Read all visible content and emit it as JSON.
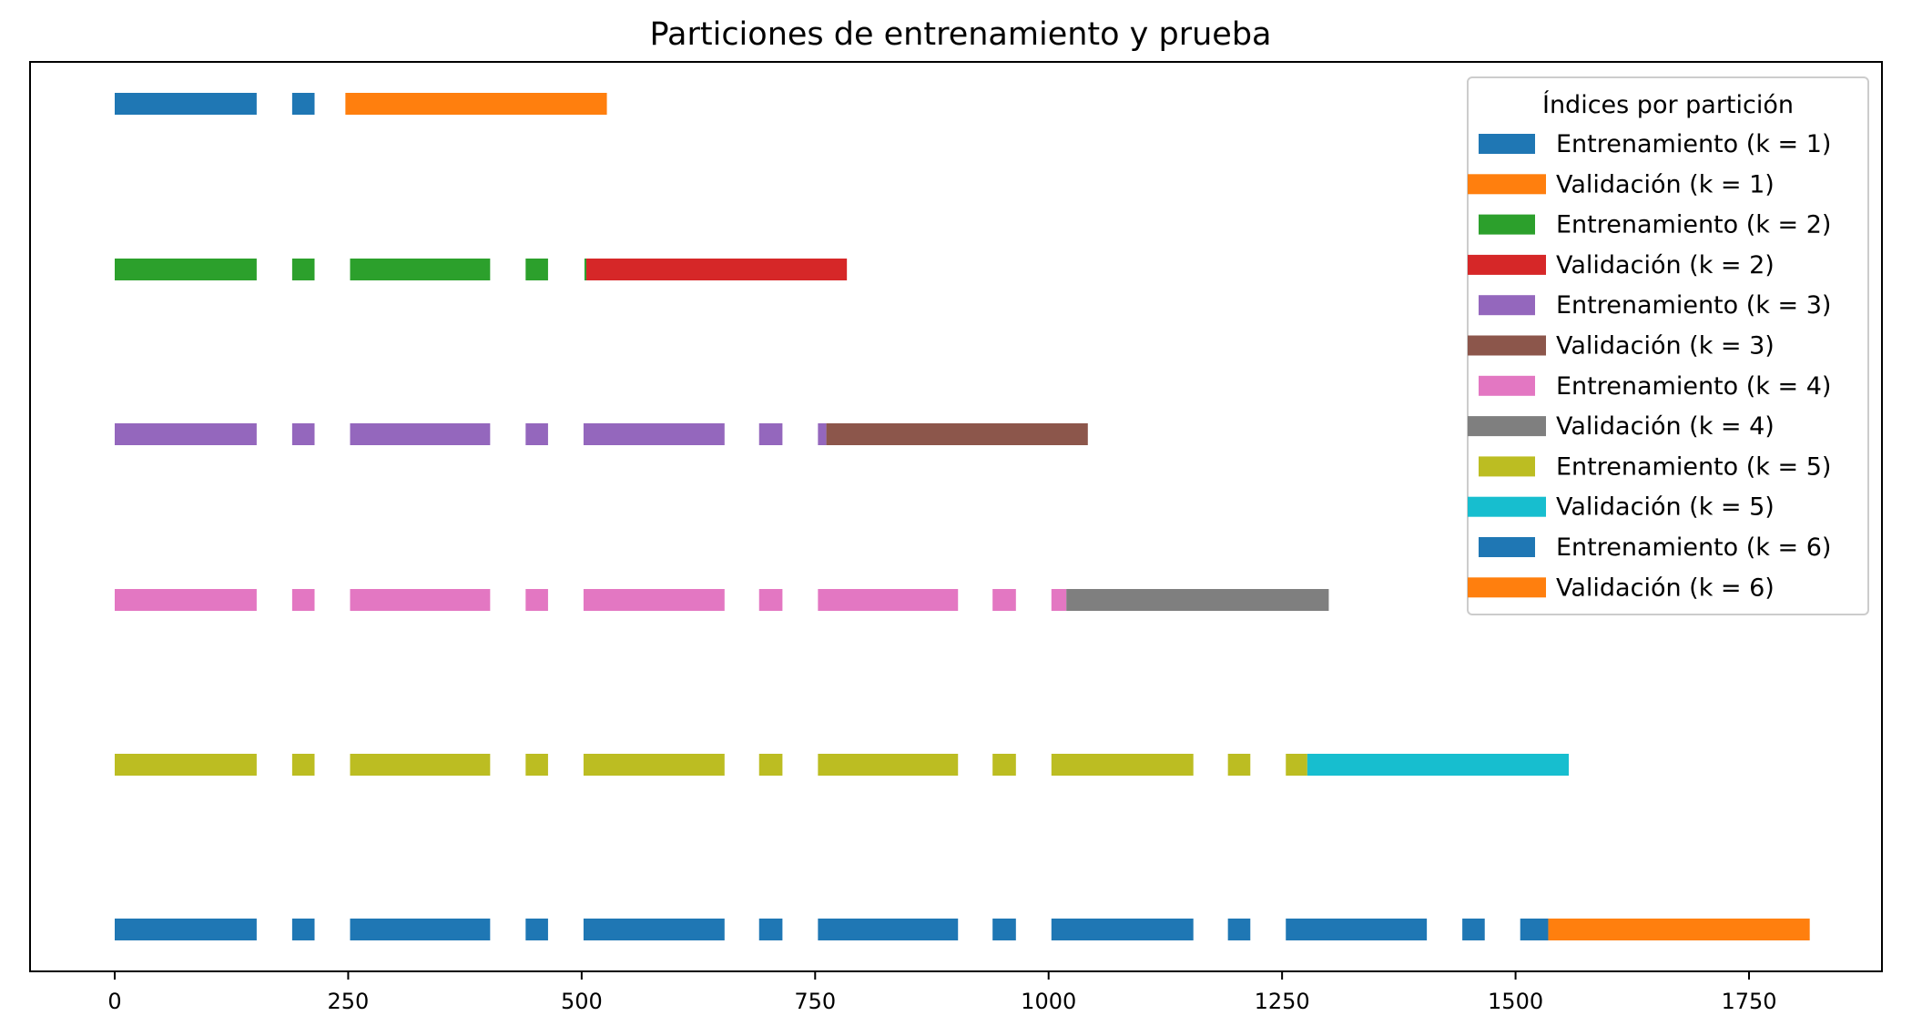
{
  "chart_data": {
    "type": "bar",
    "orientation": "horizontal-broken-bars",
    "title": "Particiones de entrenamiento y prueba",
    "xlabel": "",
    "ylabel": "",
    "xlim": [
      -90,
      1885
    ],
    "xticks": [
      0,
      250,
      500,
      750,
      1000,
      1250,
      1500,
      1750
    ],
    "yticks_visible": false,
    "grid": false,
    "legend": {
      "title": "Índices por partición",
      "placement": "top-right"
    },
    "colors": {
      "blue": "#1f77b4",
      "orange": "#ff7f0e",
      "green": "#2ca02c",
      "red": "#d62728",
      "purple": "#9467bd",
      "brown": "#8c564b",
      "pink": "#e377c2",
      "gray": "#7f7f7f",
      "olive": "#bcbd22",
      "cyan": "#17becf"
    },
    "series": [
      {
        "name": "Entrenamiento (k = 1)",
        "row": 1,
        "role": "train",
        "color": "#1f77b4",
        "segments": [
          [
            0,
            152
          ],
          [
            190,
            214
          ]
        ]
      },
      {
        "name": "Validación (k = 1)",
        "row": 1,
        "role": "val",
        "color": "#ff7f0e",
        "segments": [
          [
            247,
            527
          ]
        ]
      },
      {
        "name": "Entrenamiento (k = 2)",
        "row": 2,
        "role": "train",
        "color": "#2ca02c",
        "segments": [
          [
            0,
            152
          ],
          [
            190,
            214
          ],
          [
            252,
            402
          ],
          [
            440,
            464
          ],
          [
            503,
            505
          ]
        ]
      },
      {
        "name": "Validación (k = 2)",
        "row": 2,
        "role": "val",
        "color": "#d62728",
        "segments": [
          [
            505,
            784
          ]
        ]
      },
      {
        "name": "Entrenamiento (k = 3)",
        "row": 3,
        "role": "train",
        "color": "#9467bd",
        "segments": [
          [
            0,
            152
          ],
          [
            190,
            214
          ],
          [
            252,
            402
          ],
          [
            440,
            464
          ],
          [
            502,
            653
          ],
          [
            690,
            715
          ],
          [
            753,
            762
          ]
        ]
      },
      {
        "name": "Validación (k = 3)",
        "row": 3,
        "role": "val",
        "color": "#8c564b",
        "segments": [
          [
            762,
            1042
          ]
        ]
      },
      {
        "name": "Entrenamiento (k = 4)",
        "row": 4,
        "role": "train",
        "color": "#e377c2",
        "segments": [
          [
            0,
            152
          ],
          [
            190,
            214
          ],
          [
            252,
            402
          ],
          [
            440,
            464
          ],
          [
            502,
            653
          ],
          [
            690,
            715
          ],
          [
            753,
            903
          ],
          [
            940,
            965
          ],
          [
            1003,
            1019
          ]
        ]
      },
      {
        "name": "Validación (k = 4)",
        "row": 4,
        "role": "val",
        "color": "#7f7f7f",
        "segments": [
          [
            1019,
            1300
          ]
        ]
      },
      {
        "name": "Entrenamiento (k = 5)",
        "row": 5,
        "role": "train",
        "color": "#bcbd22",
        "segments": [
          [
            0,
            152
          ],
          [
            190,
            214
          ],
          [
            252,
            402
          ],
          [
            440,
            464
          ],
          [
            502,
            653
          ],
          [
            690,
            715
          ],
          [
            753,
            903
          ],
          [
            940,
            965
          ],
          [
            1003,
            1155
          ],
          [
            1192,
            1216
          ],
          [
            1254,
            1277
          ]
        ]
      },
      {
        "name": "Validación (k = 5)",
        "row": 5,
        "role": "val",
        "color": "#17becf",
        "segments": [
          [
            1277,
            1557
          ]
        ]
      },
      {
        "name": "Entrenamiento (k = 6)",
        "row": 6,
        "role": "train",
        "color": "#1f77b4",
        "segments": [
          [
            0,
            152
          ],
          [
            190,
            214
          ],
          [
            252,
            402
          ],
          [
            440,
            464
          ],
          [
            502,
            653
          ],
          [
            690,
            715
          ],
          [
            753,
            903
          ],
          [
            940,
            965
          ],
          [
            1003,
            1155
          ],
          [
            1192,
            1216
          ],
          [
            1254,
            1405
          ],
          [
            1443,
            1467
          ],
          [
            1505,
            1535
          ]
        ]
      },
      {
        "name": "Validación (k = 6)",
        "row": 6,
        "role": "val",
        "color": "#ff7f0e",
        "segments": [
          [
            1535,
            1815
          ]
        ]
      }
    ]
  }
}
